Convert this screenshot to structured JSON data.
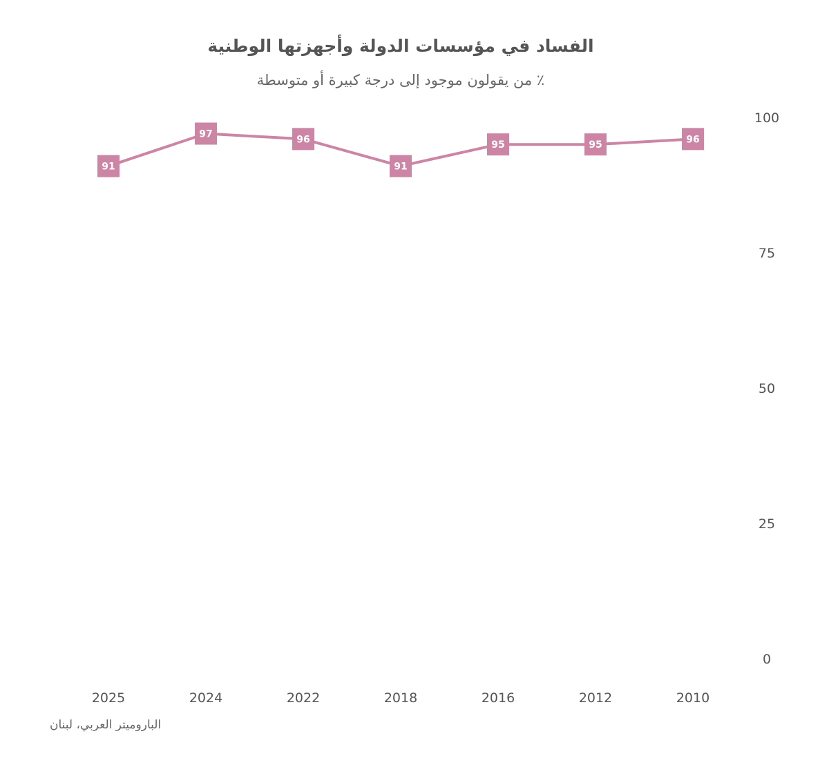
{
  "chart_data": {
    "type": "line",
    "title": "الفساد في مؤسسات الدولة وأجهزتها الوطنية",
    "subtitle": "٪ من يقولون موجود إلى درجة كبيرة أو متوسطة",
    "source": "الباروميتر العربي، لبنان",
    "categories": [
      "2025",
      "2024",
      "2022",
      "2018",
      "2016",
      "2012",
      "2010"
    ],
    "series": [
      {
        "values": [
          91,
          97,
          96,
          91,
          95,
          95,
          96
        ],
        "color": "#cc85a5"
      }
    ],
    "ylim": [
      0,
      100
    ],
    "yticks": [
      0,
      25,
      50,
      75,
      100
    ],
    "yaxis_side": "right",
    "grid": false,
    "legend": "none"
  }
}
